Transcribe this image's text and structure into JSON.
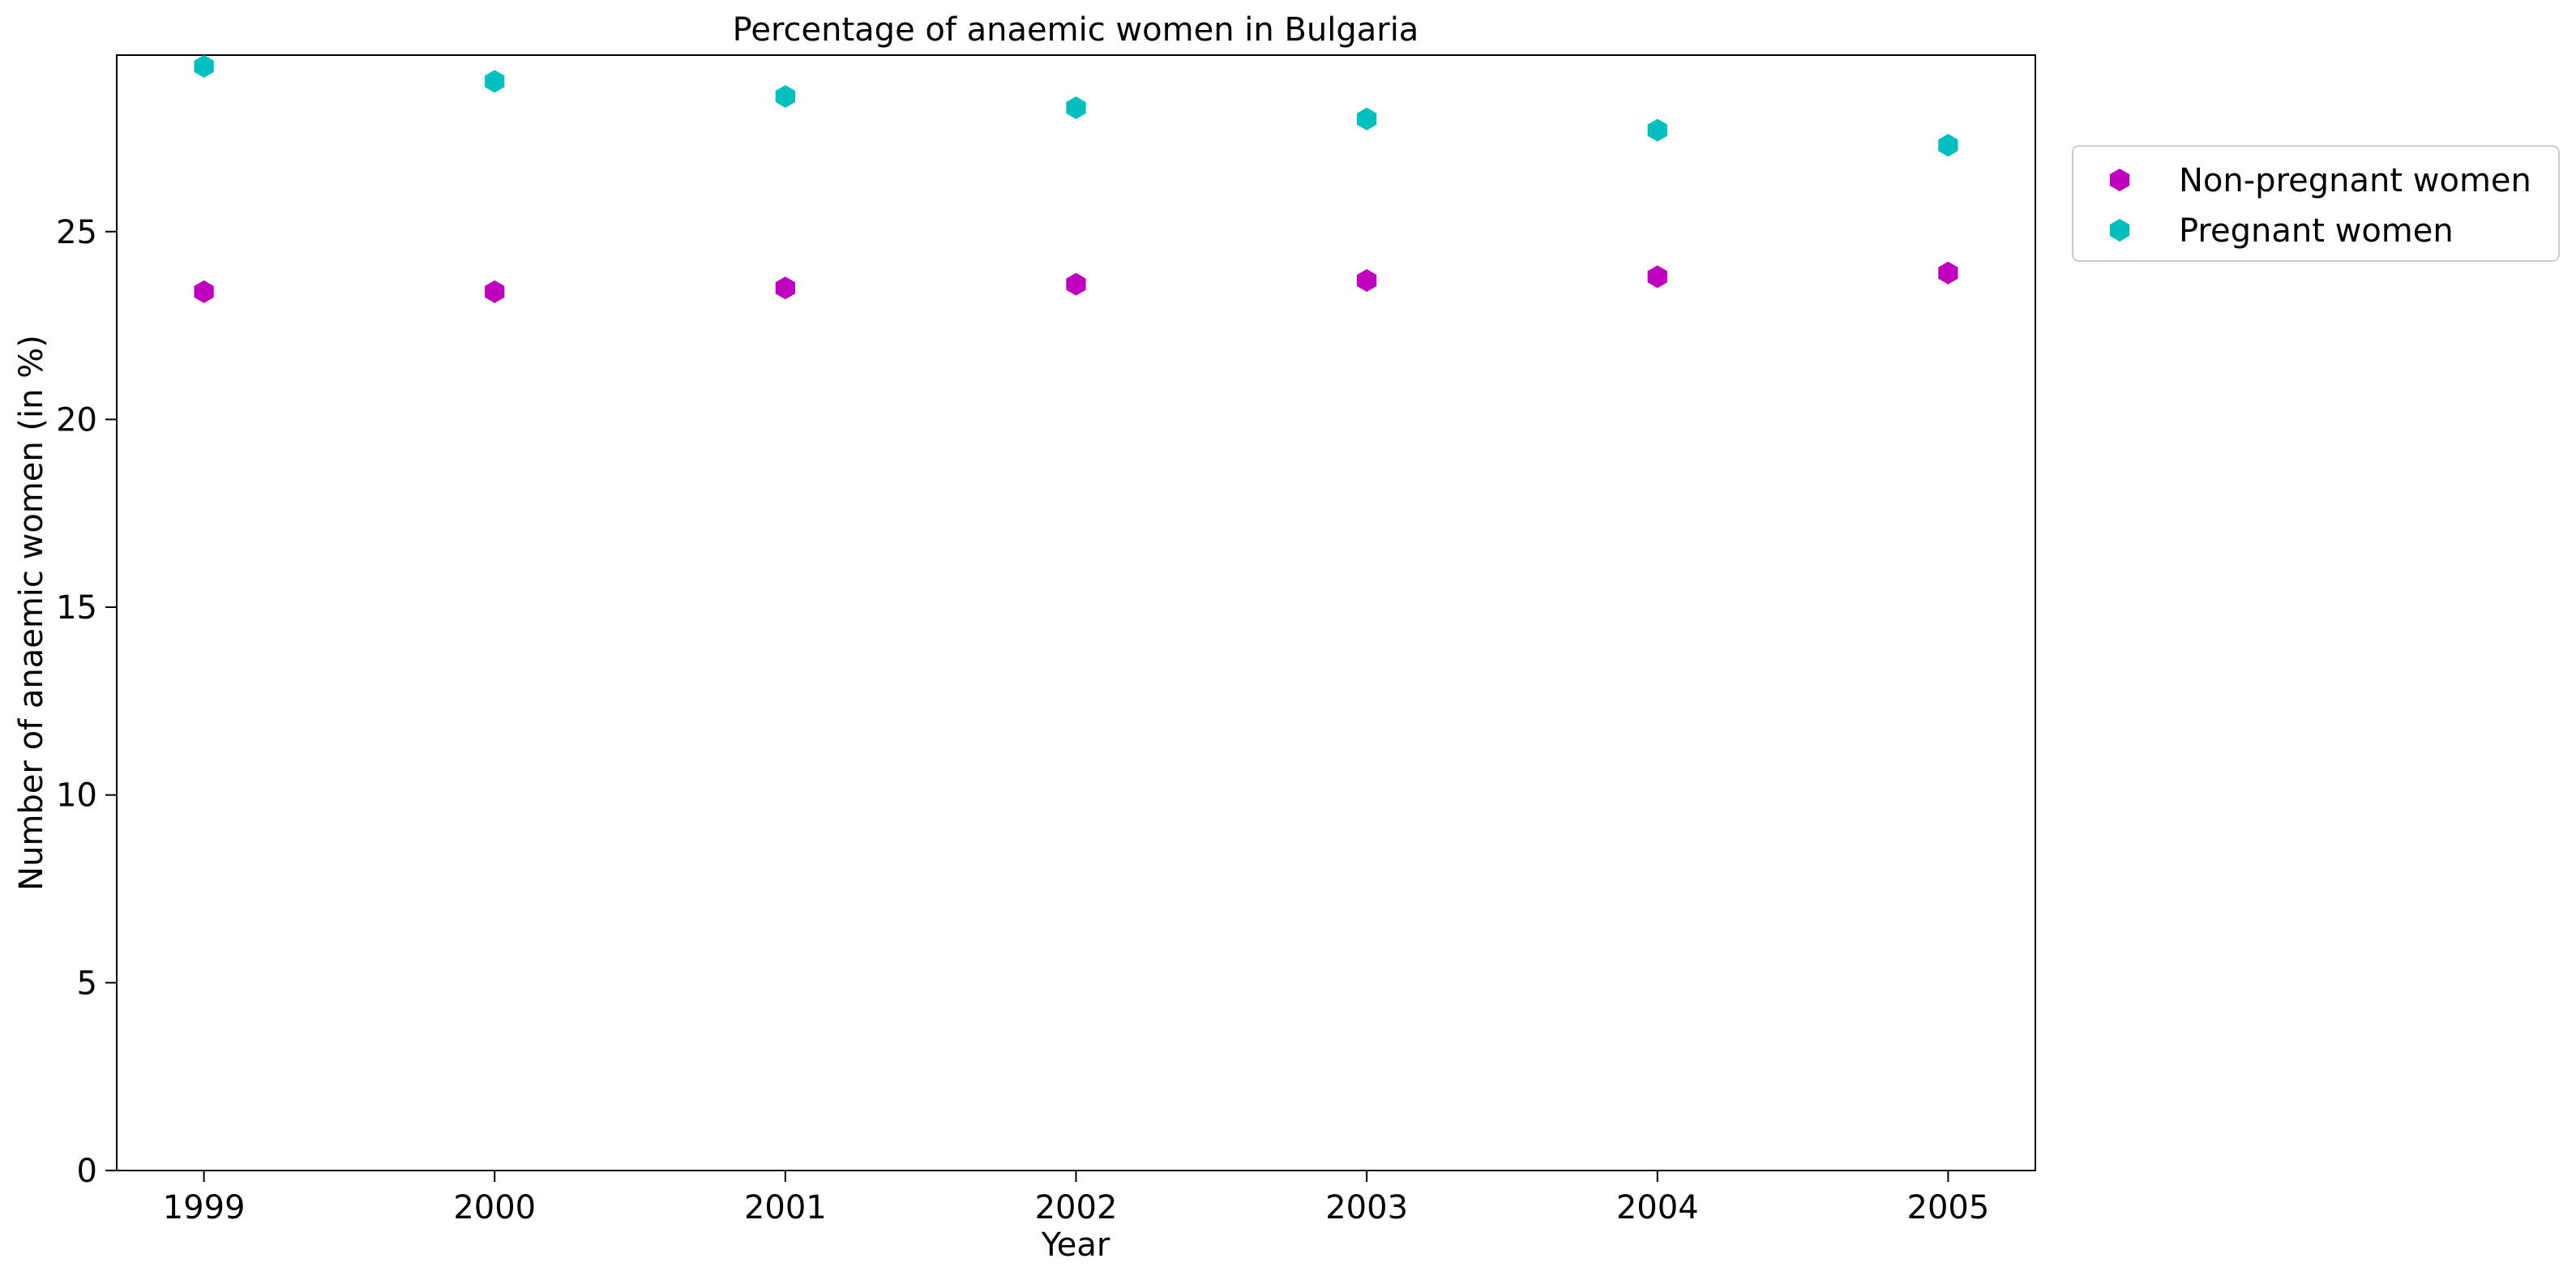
{
  "chart_data": {
    "type": "scatter",
    "title": "Percentage of anaemic women in Bulgaria",
    "xlabel": "Year",
    "ylabel": "Number of anaemic women (in %)",
    "x": [
      1999,
      2000,
      2001,
      2002,
      2003,
      2004,
      2005
    ],
    "x_tick_labels": [
      "1999",
      "2000",
      "2001",
      "2002",
      "2003",
      "2004",
      "2005"
    ],
    "y_ticks": [
      0,
      5,
      10,
      15,
      20,
      25
    ],
    "y_tick_labels": [
      "0",
      "5",
      "10",
      "15",
      "20",
      "25"
    ],
    "xlim": [
      1998.7,
      2005.3
    ],
    "ylim": [
      0,
      29.7
    ],
    "grid": false,
    "legend_position": "upper right, outside plot",
    "series": [
      {
        "name": "Non-pregnant women",
        "color": "#bf00bf",
        "marker": "hexagon",
        "values": [
          23.4,
          23.4,
          23.5,
          23.6,
          23.7,
          23.8,
          23.9
        ]
      },
      {
        "name": "Pregnant women",
        "color": "#00bfbf",
        "marker": "hexagon",
        "values": [
          29.4,
          29.0,
          28.6,
          28.3,
          28.0,
          27.7,
          27.3
        ]
      }
    ]
  }
}
